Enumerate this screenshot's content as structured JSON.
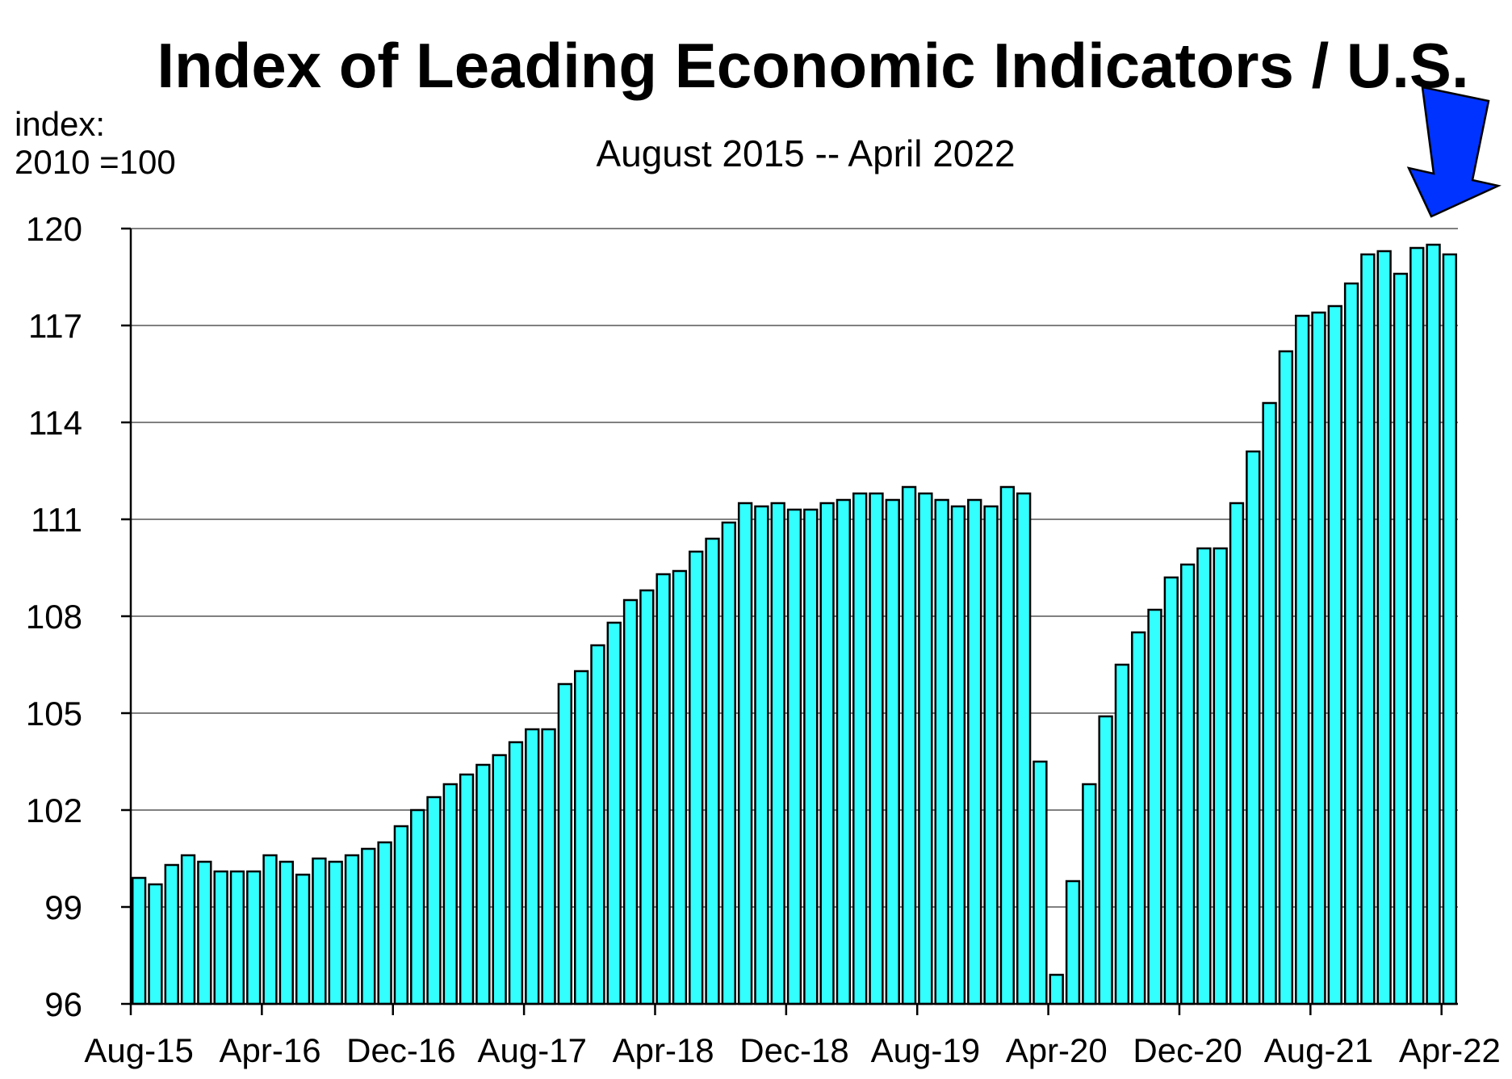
{
  "chart_data": {
    "type": "bar",
    "title": "Index of Leading Economic Indicators / U.S.",
    "subtitle": "August 2015 -- April 2022",
    "ylabel_line1": "index:",
    "ylabel_line2": "2010 =100",
    "ylim": [
      96,
      120
    ],
    "yticks": [
      96,
      99,
      102,
      105,
      108,
      111,
      114,
      117,
      120
    ],
    "grid": true,
    "bar_color": "#33ffff",
    "arrow_color": "#0033ff",
    "xtick_labels": [
      "Aug-15",
      "Apr-16",
      "Dec-16",
      "Aug-17",
      "Apr-18",
      "Dec-18",
      "Aug-19",
      "Apr-20",
      "Dec-20",
      "Aug-21",
      "Apr-22"
    ],
    "xtick_every": 8,
    "values": [
      99.9,
      99.7,
      100.3,
      100.6,
      100.4,
      100.1,
      100.1,
      100.1,
      100.6,
      100.4,
      100.0,
      100.5,
      100.4,
      100.6,
      100.8,
      101.0,
      101.5,
      102.0,
      102.4,
      102.8,
      103.1,
      103.4,
      103.7,
      104.1,
      104.5,
      104.5,
      105.9,
      106.3,
      107.1,
      107.8,
      108.5,
      108.8,
      109.3,
      109.4,
      110.0,
      110.4,
      110.9,
      111.5,
      111.4,
      111.5,
      111.3,
      111.3,
      111.5,
      111.6,
      111.8,
      111.8,
      111.6,
      112.0,
      111.8,
      111.6,
      111.4,
      111.6,
      111.4,
      112.0,
      111.8,
      103.5,
      96.9,
      99.8,
      102.8,
      104.9,
      106.5,
      107.5,
      108.2,
      109.2,
      109.6,
      110.1,
      110.1,
      111.5,
      113.1,
      114.6,
      116.2,
      117.3,
      117.4,
      117.6,
      118.3,
      119.2,
      119.3,
      118.6,
      119.4,
      119.5,
      119.2
    ]
  }
}
